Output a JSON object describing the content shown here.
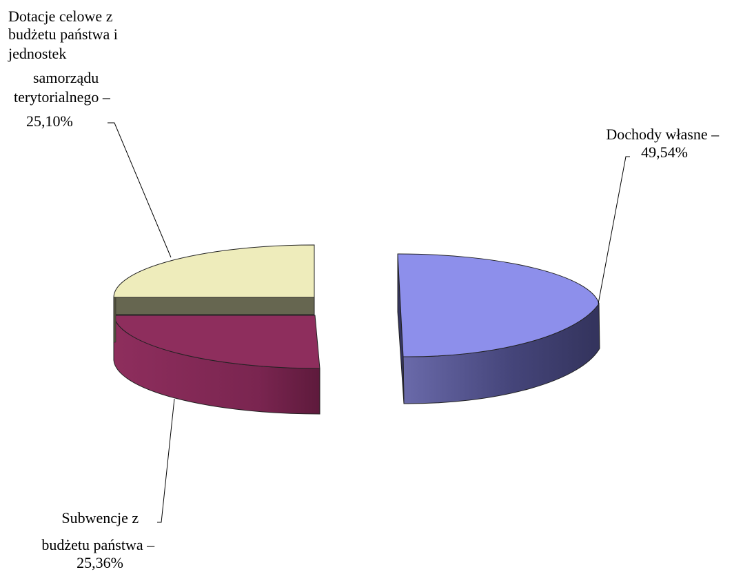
{
  "chart_data": {
    "type": "pie",
    "style": "3d-exploded",
    "categories": [
      "Dochody własne",
      "Subwencje z budżetu państwa",
      "Dotacje celowe z budżetu państwa i jednostek samorządu terytorialnego"
    ],
    "values": [
      49.54,
      25.36,
      25.1
    ],
    "unit": "%",
    "colors": {
      "top": [
        "#8d8feb",
        "#8e2e5d",
        "#eeecbb"
      ],
      "side": [
        "#3b3b6c",
        "#6e1e45",
        "#666650"
      ]
    },
    "labels": [
      {
        "lines": [
          "Dochody własne –",
          "49,54%"
        ]
      },
      {
        "lines": [
          "Subwencje z",
          "budżetu państwa –",
          "25,36%"
        ]
      },
      {
        "lines": [
          "Dotacje celowe z",
          "budżetu państwa i",
          "jednostek",
          "samorządu",
          "terytorialnego –",
          "25,10%"
        ]
      }
    ],
    "legend": "none"
  }
}
